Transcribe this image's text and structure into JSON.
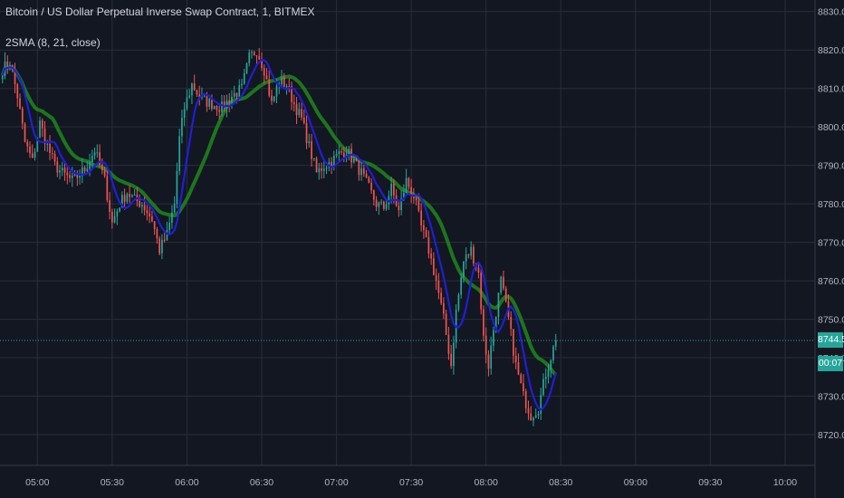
{
  "header": {
    "title": "Bitcoin / US Dollar Perpetual Inverse Swap Contract, 1, BITMEX",
    "indicator": "2SMA (8, 21, close)"
  },
  "price_tags": {
    "last_price": "8744.5",
    "countdown": "00:07",
    "accent_color": "#26a69a"
  },
  "colors": {
    "background": "#131722",
    "grid": "#2a2e39",
    "up_candle": "#26a69a",
    "down_candle": "#ef5350",
    "fast_sma": "#1f1fd6",
    "slow_sma": "#1e7a1e"
  },
  "chart_data": {
    "type": "candlestick",
    "title": "Bitcoin / US Dollar Perpetual Inverse Swap Contract, 1, BITMEX",
    "x_ticks": [
      "05:00",
      "05:30",
      "06:00",
      "06:30",
      "07:00",
      "07:30",
      "08:00",
      "08:30",
      "09:00",
      "09:30",
      "10:00"
    ],
    "y_ticks": [
      8720.0,
      8730.0,
      8740.0,
      8750.0,
      8760.0,
      8770.0,
      8780.0,
      8790.0,
      8800.0,
      8810.0,
      8820.0,
      8830.0
    ],
    "y_tick_labels": [
      "8720.0",
      "8730.0",
      "8740.0",
      "8750.0",
      "8760.0",
      "8770.0",
      "8780.0",
      "8790.0",
      "8800.0",
      "8810.0",
      "8820.0",
      "8830.0"
    ],
    "ylim": [
      8712.0,
      8833.0
    ],
    "x_range": [
      "04:45",
      "10:12"
    ],
    "grid": true,
    "last_price": 8744.5,
    "close_anchors": [
      [
        "04:46",
        8815
      ],
      [
        "04:49",
        8817
      ],
      [
        "04:52",
        8808
      ],
      [
        "04:55",
        8796
      ],
      [
        "04:58",
        8791
      ],
      [
        "05:01",
        8801
      ],
      [
        "05:04",
        8795
      ],
      [
        "05:07",
        8790
      ],
      [
        "05:10",
        8788
      ],
      [
        "05:14",
        8786
      ],
      [
        "05:19",
        8789
      ],
      [
        "05:23",
        8794
      ],
      [
        "05:27",
        8786
      ],
      [
        "05:30",
        8775
      ],
      [
        "05:33",
        8780
      ],
      [
        "05:36",
        8783
      ],
      [
        "05:39",
        8781
      ],
      [
        "05:42",
        8780
      ],
      [
        "05:46",
        8776
      ],
      [
        "05:49",
        8768
      ],
      [
        "05:52",
        8772
      ],
      [
        "05:55",
        8780
      ],
      [
        "05:57",
        8797
      ],
      [
        "05:59",
        8805
      ],
      [
        "06:02",
        8811
      ],
      [
        "06:06",
        8807
      ],
      [
        "06:10",
        8806
      ],
      [
        "06:14",
        8805
      ],
      [
        "06:18",
        8808
      ],
      [
        "06:22",
        8810
      ],
      [
        "06:25",
        8818
      ],
      [
        "06:28",
        8820
      ],
      [
        "06:31",
        8815
      ],
      [
        "06:34",
        8806
      ],
      [
        "06:37",
        8812
      ],
      [
        "06:40",
        8811
      ],
      [
        "06:43",
        8806
      ],
      [
        "06:46",
        8802
      ],
      [
        "06:49",
        8795
      ],
      [
        "06:52",
        8788
      ],
      [
        "06:55",
        8790
      ],
      [
        "06:58",
        8791
      ],
      [
        "07:01",
        8793
      ],
      [
        "07:04",
        8794
      ],
      [
        "07:07",
        8791
      ],
      [
        "07:10",
        8788
      ],
      [
        "07:13",
        8784
      ],
      [
        "07:16",
        8780
      ],
      [
        "07:19",
        8779
      ],
      [
        "07:22",
        8784
      ],
      [
        "07:25",
        8778
      ],
      [
        "07:28",
        8786
      ],
      [
        "07:31",
        8782
      ],
      [
        "07:34",
        8774
      ],
      [
        "07:37",
        8768
      ],
      [
        "07:40",
        8760
      ],
      [
        "07:43",
        8750
      ],
      [
        "07:46",
        8738
      ],
      [
        "07:48",
        8752
      ],
      [
        "07:51",
        8765
      ],
      [
        "07:54",
        8768
      ],
      [
        "07:57",
        8762
      ],
      [
        "07:59",
        8745
      ],
      [
        "08:01",
        8738
      ],
      [
        "08:04",
        8752
      ],
      [
        "08:06",
        8760
      ],
      [
        "08:09",
        8750
      ],
      [
        "08:12",
        8738
      ],
      [
        "08:15",
        8730
      ],
      [
        "08:18",
        8725
      ],
      [
        "08:21",
        8727
      ],
      [
        "08:24",
        8736
      ],
      [
        "08:28",
        8744.5
      ]
    ]
  }
}
